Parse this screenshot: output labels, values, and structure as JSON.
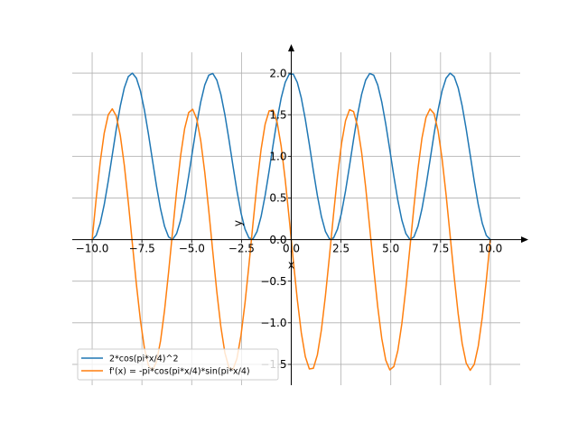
{
  "chart_data": {
    "type": "line",
    "title": "",
    "xlabel": "x",
    "ylabel": "y",
    "xlim": [
      -11.0,
      11.5
    ],
    "ylim": [
      -1.75,
      2.25
    ],
    "x_ticks": [
      -10.0,
      -7.5,
      -5.0,
      -2.5,
      0.0,
      2.5,
      5.0,
      7.5,
      10.0
    ],
    "x_tick_labels": [
      "−10.0",
      "−7.5",
      "−5.0",
      "−2.5",
      "0.0",
      "2.5",
      "5.0",
      "7.5",
      "10.0"
    ],
    "y_ticks": [
      -1.5,
      -1.0,
      -0.5,
      0.0,
      0.5,
      1.0,
      1.5,
      2.0
    ],
    "y_tick_labels": [
      "−1.5",
      "−1.0",
      "−0.5",
      "0.0",
      "0.5",
      "1.0",
      "1.5",
      "2.0"
    ],
    "grid": true,
    "legend_position": "lower-left",
    "x_domain": [
      -10,
      10
    ],
    "samples": 100,
    "series": [
      {
        "name": "2*cos(pi*x/4)^2",
        "expression": "2*cos(pi*x/4)^2",
        "color": "#1f77b4"
      },
      {
        "name": "f'(x) = -pi*cos(pi*x/4)*sin(pi*x/4)",
        "expression": "-pi*cos(pi*x/4)*sin(pi*x/4)",
        "color": "#ff7f0e"
      }
    ]
  }
}
